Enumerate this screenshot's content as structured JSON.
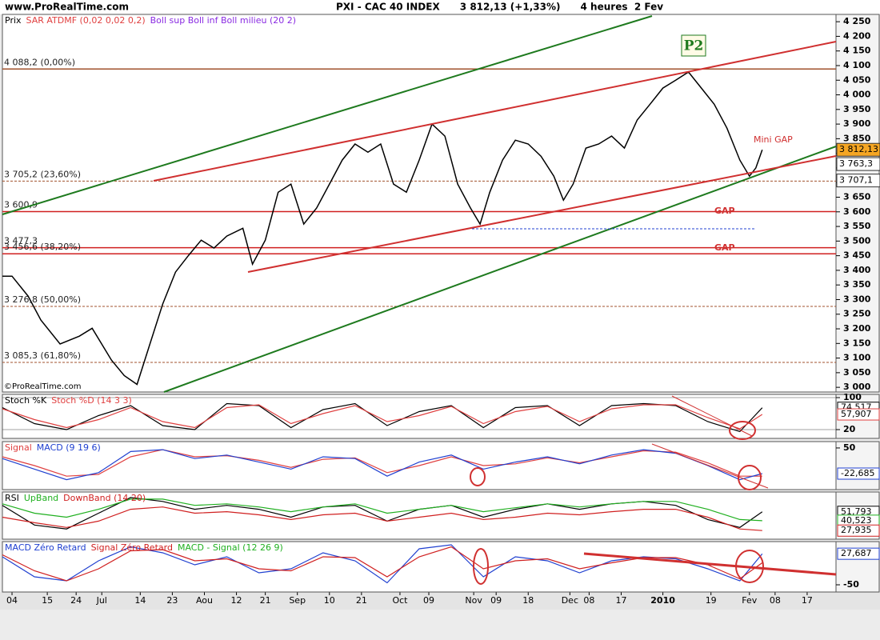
{
  "header": {
    "site": "www.ProRealTime.com",
    "title": "PXI - CAC 40 INDEX      3 812,13 (+1,33%)      4 heures  2 Fev"
  },
  "copyright": "©ProRealTime.com",
  "chart_data": [
    {
      "type": "line",
      "xlim": [
        0,
        260
      ],
      "ylim": [
        2984,
        4275
      ],
      "x": [
        0,
        3,
        8,
        12,
        18,
        24,
        28,
        34,
        38,
        42,
        46,
        50,
        54,
        58,
        62,
        66,
        70,
        75,
        78,
        82,
        86,
        90,
        94,
        98,
        102,
        106,
        110,
        114,
        118,
        122,
        126,
        130,
        134,
        138,
        142,
        146,
        149,
        152,
        156,
        160,
        164,
        168,
        172,
        175,
        178,
        182,
        186,
        190,
        194,
        198,
        202,
        206,
        210,
        214,
        218,
        222,
        226,
        230,
        233,
        235,
        237
      ],
      "series": [
        {
          "name": "Prix",
          "color": "#000000",
          "values": [
            3380,
            3380,
            3312,
            3230,
            3148,
            3175,
            3202,
            3093,
            3040,
            3010,
            3148,
            3285,
            3394,
            3450,
            3503,
            3476,
            3517,
            3544,
            3421,
            3503,
            3667,
            3695,
            3558,
            3613,
            3695,
            3777,
            3832,
            3804,
            3832,
            3695,
            3667,
            3777,
            3900,
            3859,
            3695,
            3613,
            3558,
            3667,
            3777,
            3845,
            3832,
            3790,
            3722,
            3640,
            3695,
            3818,
            3832,
            3859,
            3818,
            3914,
            3968,
            4023,
            4050,
            4078,
            4023,
            3968,
            3886,
            3777,
            3722,
            3750,
            3812.13
          ]
        }
      ],
      "legend_extra": [
        {
          "text": "SAR ATDMF (0,02 0,02 0,2)",
          "color": "#e04040"
        },
        {
          "text": "Boll sup Boll inf Boll milieu (20 2)",
          "color": "#8a2be2"
        }
      ],
      "yticks": [
        {
          "value": 4250,
          "label": "4 250"
        },
        {
          "value": 4200,
          "label": "4 200"
        },
        {
          "value": 4150,
          "label": "4 150"
        },
        {
          "value": 4100,
          "label": "4 100"
        },
        {
          "value": 4050,
          "label": "4 050"
        },
        {
          "value": 4000,
          "label": "4 000"
        },
        {
          "value": 3950,
          "label": "3 950"
        },
        {
          "value": 3900,
          "label": "3 900"
        },
        {
          "value": 3850,
          "label": "3 850"
        },
        {
          "value": 3800,
          "label": "3 800"
        },
        {
          "value": 3750,
          "label": "3 750"
        },
        {
          "value": 3700,
          "label": "3 700"
        },
        {
          "value": 3650,
          "label": "3 650"
        },
        {
          "value": 3600,
          "label": "3 600"
        },
        {
          "value": 3550,
          "label": "3 550"
        },
        {
          "value": 3500,
          "label": "3 500"
        },
        {
          "value": 3450,
          "label": "3 450"
        },
        {
          "value": 3400,
          "label": "3 400"
        },
        {
          "value": 3350,
          "label": "3 350"
        },
        {
          "value": 3300,
          "label": "3 300"
        },
        {
          "value": 3250,
          "label": "3 250"
        },
        {
          "value": 3200,
          "label": "3 200"
        },
        {
          "value": 3150,
          "label": "3 150"
        },
        {
          "value": 3100,
          "label": "3 100"
        },
        {
          "value": 3050,
          "label": "3 050"
        },
        {
          "value": 3000,
          "label": "3 000"
        }
      ],
      "fib_levels": [
        {
          "value": 4088.2,
          "label": "4 088,2 (0,00%)",
          "color": "#a0522d",
          "dash": false
        },
        {
          "value": 3705.2,
          "label": "3 705,2 (23,60%)",
          "color": "#a0522d",
          "dash": true
        },
        {
          "value": 3600.9,
          "label": "3 600,9",
          "color": "#d02020",
          "dash": false
        },
        {
          "value": 3477.3,
          "label": "3 477,3",
          "color": "#d02020",
          "dash": false
        },
        {
          "value": 3456.6,
          "label": "3 456,6 (38,20%)",
          "color": "#d02020",
          "dash": false
        },
        {
          "value": 3276.8,
          "label": "3 276,8 (50,00%)",
          "color": "#a0522d",
          "dash": true
        },
        {
          "value": 3085.3,
          "label": "3 085,3 (61,80%)",
          "color": "#a0522d",
          "dash": true
        }
      ],
      "price_labels": [
        {
          "value": 3812.13,
          "label": "3 812,13",
          "highlight": true
        },
        {
          "value": 3763.3,
          "label": "3 763,3",
          "highlight": false
        },
        {
          "value": 3707.1,
          "label": "3 707,1",
          "highlight": false
        }
      ],
      "annotations": [
        "P2",
        "Mini GAP",
        "GAP",
        "GAP"
      ],
      "xticks": [
        {
          "value": 3,
          "label": "04"
        },
        {
          "value": 14,
          "label": "15"
        },
        {
          "value": 23,
          "label": "24"
        },
        {
          "value": 31,
          "label": "Jul"
        },
        {
          "value": 43,
          "label": "14"
        },
        {
          "value": 53,
          "label": "23"
        },
        {
          "value": 63,
          "label": "Aou"
        },
        {
          "value": 73,
          "label": "12"
        },
        {
          "value": 82,
          "label": "21"
        },
        {
          "value": 92,
          "label": "Sep"
        },
        {
          "value": 102,
          "label": "10"
        },
        {
          "value": 112,
          "label": "21"
        },
        {
          "value": 124,
          "label": "Oct"
        },
        {
          "value": 133,
          "label": "09"
        },
        {
          "value": 147,
          "label": "Nov"
        },
        {
          "value": 154,
          "label": "09"
        },
        {
          "value": 164,
          "label": "18"
        },
        {
          "value": 177,
          "label": "Dec"
        },
        {
          "value": 183,
          "label": "08"
        },
        {
          "value": 193,
          "label": "17"
        },
        {
          "value": 206,
          "label": "2010"
        },
        {
          "value": 221,
          "label": "19"
        },
        {
          "value": 233,
          "label": "Fev"
        },
        {
          "value": 241,
          "label": "08"
        },
        {
          "value": 251,
          "label": "17"
        }
      ]
    },
    {
      "type": "line",
      "xlim": [
        0,
        260
      ],
      "ylim": [
        -2,
        108
      ],
      "yticks": [
        20,
        100
      ],
      "grid": true,
      "x": [
        0,
        10,
        20,
        30,
        40,
        50,
        60,
        70,
        80,
        90,
        100,
        110,
        120,
        130,
        140,
        150,
        160,
        170,
        180,
        190,
        200,
        210,
        220,
        230,
        237
      ],
      "series": [
        {
          "name": "Stoch %K",
          "color": "#000000",
          "values": [
            75,
            35,
            20,
            55,
            80,
            30,
            20,
            85,
            80,
            25,
            70,
            85,
            30,
            65,
            80,
            25,
            75,
            80,
            30,
            80,
            85,
            80,
            40,
            15,
            74.517
          ],
          "value_labels": [
            null,
            null,
            null,
            null,
            null,
            null,
            null,
            null,
            null,
            null,
            null,
            null,
            null,
            null,
            null,
            null,
            null,
            null,
            null,
            null,
            null,
            null,
            null,
            null,
            "74,517"
          ]
        },
        {
          "name": "Stoch %D (14 3 3)",
          "color": "#e04040",
          "values": [
            72,
            45,
            25,
            45,
            75,
            40,
            25,
            75,
            82,
            35,
            60,
            80,
            40,
            55,
            78,
            35,
            65,
            78,
            40,
            72,
            82,
            82,
            50,
            22,
            57.907
          ],
          "value_labels": [
            null,
            null,
            null,
            null,
            null,
            null,
            null,
            null,
            null,
            null,
            null,
            null,
            null,
            null,
            null,
            null,
            null,
            null,
            null,
            null,
            null,
            null,
            null,
            null,
            "57,907"
          ]
        }
      ]
    },
    {
      "type": "line",
      "xlim": [
        0,
        260
      ],
      "ylim": [
        -68,
        68
      ],
      "yticks": [
        50
      ],
      "grid": false,
      "x": [
        0,
        10,
        20,
        30,
        40,
        50,
        60,
        70,
        80,
        90,
        100,
        110,
        120,
        130,
        140,
        150,
        160,
        170,
        180,
        190,
        200,
        210,
        220,
        230,
        237
      ],
      "series": [
        {
          "name": "Signal",
          "color": "#e04040",
          "values": [
            25,
            0,
            -30,
            -25,
            25,
            45,
            25,
            28,
            15,
            -5,
            18,
            22,
            -20,
            0,
            25,
            0,
            5,
            22,
            8,
            25,
            42,
            38,
            8,
            -30,
            -30
          ]
        },
        {
          "name": "MACD (9 19 6)",
          "color": "#2040d0",
          "values": [
            20,
            -10,
            -40,
            -20,
            40,
            45,
            20,
            30,
            10,
            -10,
            25,
            20,
            -30,
            10,
            30,
            -10,
            10,
            25,
            5,
            30,
            45,
            35,
            0,
            -40,
            -22.685
          ],
          "value_labels": [
            null,
            null,
            null,
            null,
            null,
            null,
            null,
            null,
            null,
            null,
            null,
            null,
            null,
            null,
            null,
            null,
            null,
            null,
            null,
            null,
            null,
            null,
            null,
            null,
            "-22,685"
          ]
        }
      ]
    },
    {
      "type": "line",
      "xlim": [
        0,
        260
      ],
      "ylim": [
        17,
        77
      ],
      "yticks": [],
      "grid": false,
      "x": [
        0,
        10,
        20,
        30,
        40,
        50,
        60,
        70,
        80,
        90,
        100,
        110,
        120,
        130,
        140,
        150,
        160,
        170,
        180,
        190,
        200,
        210,
        220,
        230,
        237
      ],
      "series": [
        {
          "name": "RSI",
          "color": "#000000",
          "values": [
            60,
            35,
            30,
            50,
            70,
            65,
            55,
            60,
            55,
            45,
            58,
            60,
            40,
            55,
            60,
            45,
            55,
            62,
            55,
            62,
            65,
            60,
            42,
            32,
            51.793
          ],
          "value_labels": [
            null,
            null,
            null,
            null,
            null,
            null,
            null,
            null,
            null,
            null,
            null,
            null,
            null,
            null,
            null,
            null,
            null,
            null,
            null,
            null,
            null,
            null,
            null,
            null,
            "51,793"
          ]
        },
        {
          "name": "UpBand",
          "color": "#20b020",
          "values": [
            62,
            50,
            45,
            55,
            68,
            68,
            60,
            62,
            58,
            52,
            58,
            62,
            50,
            55,
            60,
            52,
            57,
            62,
            58,
            62,
            65,
            65,
            55,
            42,
            40.523
          ],
          "value_labels": [
            null,
            null,
            null,
            null,
            null,
            null,
            null,
            null,
            null,
            null,
            null,
            null,
            null,
            null,
            null,
            null,
            null,
            null,
            null,
            null,
            null,
            null,
            null,
            null,
            "40,523"
          ]
        },
        {
          "name": "DownBand (14 20)",
          "color": "#d02020",
          "values": [
            45,
            38,
            32,
            40,
            55,
            58,
            50,
            52,
            48,
            42,
            48,
            50,
            40,
            45,
            50,
            42,
            45,
            50,
            48,
            52,
            55,
            55,
            45,
            30,
            27.935
          ],
          "value_labels": [
            null,
            null,
            null,
            null,
            null,
            null,
            null,
            null,
            null,
            null,
            null,
            null,
            null,
            null,
            null,
            null,
            null,
            null,
            null,
            null,
            null,
            null,
            null,
            null,
            "27,935"
          ]
        }
      ]
    },
    {
      "type": "line",
      "xlim": [
        0,
        260
      ],
      "ylim": [
        -68,
        58
      ],
      "yticks": [
        -50
      ],
      "grid": false,
      "x": [
        0,
        10,
        20,
        30,
        40,
        50,
        60,
        70,
        80,
        90,
        100,
        110,
        120,
        130,
        140,
        150,
        160,
        170,
        180,
        190,
        200,
        210,
        220,
        230,
        237
      ],
      "series": [
        {
          "name": "MACD Zéro Retard",
          "color": "#2040d0",
          "values": [
            20,
            -30,
            -40,
            10,
            45,
            30,
            0,
            20,
            -20,
            -10,
            30,
            10,
            -45,
            40,
            50,
            -30,
            20,
            10,
            -20,
            10,
            20,
            15,
            -10,
            -40,
            27.687
          ],
          "value_labels": [
            null,
            null,
            null,
            null,
            null,
            null,
            null,
            null,
            null,
            null,
            null,
            null,
            null,
            null,
            null,
            null,
            null,
            null,
            null,
            null,
            null,
            null,
            null,
            null,
            "27,687"
          ]
        },
        {
          "name": "Signal Zéro Retard",
          "color": "#d02020",
          "values": [
            25,
            -15,
            -40,
            -10,
            35,
            38,
            10,
            15,
            -10,
            -15,
            20,
            18,
            -30,
            20,
            45,
            -10,
            10,
            15,
            -10,
            5,
            18,
            18,
            0,
            -35,
            5
          ]
        }
      ],
      "legend_extra": [
        {
          "text": "MACD - Signal (12 26 9)",
          "color": "#20b020"
        }
      ]
    }
  ]
}
